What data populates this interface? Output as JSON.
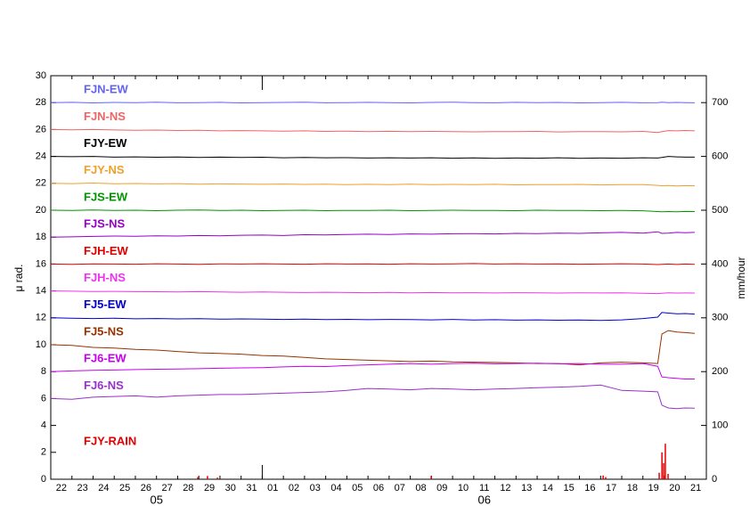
{
  "chart_data": {
    "type": "line",
    "y_label": "μ rad.",
    "y2_label": "mm/hour",
    "xlim": [
      0,
      31
    ],
    "ylim": [
      0,
      30
    ],
    "yticks": [
      0,
      2,
      4,
      6,
      8,
      10,
      12,
      14,
      16,
      18,
      20,
      22,
      24,
      26,
      28,
      30
    ],
    "y2lim": [
      0,
      750
    ],
    "y2ticks": [
      0,
      100,
      200,
      300,
      400,
      500,
      600,
      700
    ],
    "xminorticks": [
      0,
      1,
      2,
      3,
      4,
      5,
      6,
      7,
      8,
      9,
      10,
      11,
      12,
      13,
      14,
      15,
      16,
      17,
      18,
      19,
      20,
      21,
      22,
      23,
      24,
      25,
      26,
      27,
      28,
      29,
      30,
      31
    ],
    "month_ticks": [
      10
    ],
    "xticks": [
      {
        "value": 0.5,
        "label": "22"
      },
      {
        "value": 1.5,
        "label": "23"
      },
      {
        "value": 2.5,
        "label": "24"
      },
      {
        "value": 3.5,
        "label": "25"
      },
      {
        "value": 4.5,
        "label": "26"
      },
      {
        "value": 5.5,
        "label": "27"
      },
      {
        "value": 6.5,
        "label": "28"
      },
      {
        "value": 7.5,
        "label": "29"
      },
      {
        "value": 8.5,
        "label": "30"
      },
      {
        "value": 9.5,
        "label": "31"
      },
      {
        "value": 10.5,
        "label": "01"
      },
      {
        "value": 11.5,
        "label": "02"
      },
      {
        "value": 12.5,
        "label": "03"
      },
      {
        "value": 13.5,
        "label": "04"
      },
      {
        "value": 14.5,
        "label": "05"
      },
      {
        "value": 15.5,
        "label": "06"
      },
      {
        "value": 16.5,
        "label": "07"
      },
      {
        "value": 17.5,
        "label": "08"
      },
      {
        "value": 18.5,
        "label": "09"
      },
      {
        "value": 19.5,
        "label": "10"
      },
      {
        "value": 20.5,
        "label": "11"
      },
      {
        "value": 21.5,
        "label": "12"
      },
      {
        "value": 22.5,
        "label": "13"
      },
      {
        "value": 23.5,
        "label": "14"
      },
      {
        "value": 24.5,
        "label": "15"
      },
      {
        "value": 25.5,
        "label": "16"
      },
      {
        "value": 26.5,
        "label": "17"
      },
      {
        "value": 27.5,
        "label": "18"
      },
      {
        "value": 28.5,
        "label": "19"
      },
      {
        "value": 29.5,
        "label": "20"
      },
      {
        "value": 30.5,
        "label": "21"
      }
    ],
    "months": [
      {
        "value": 5,
        "label": "05"
      },
      {
        "value": 20.5,
        "label": "06"
      }
    ],
    "x": [
      0,
      1,
      2,
      3,
      4,
      5,
      6,
      7,
      8,
      9,
      10,
      11,
      12,
      13,
      14,
      15,
      16,
      17,
      18,
      19,
      20,
      21,
      22,
      23,
      24,
      25,
      26,
      27,
      28,
      28.7,
      28.9,
      29.2,
      29.6,
      30,
      30.45
    ],
    "series": [
      {
        "name": "FJN-EW",
        "color": "#6464f0",
        "values": [
          28.0,
          28.02,
          27.98,
          28.01,
          28.0,
          28.03,
          27.99,
          28.0,
          28.02,
          27.98,
          28.0,
          28.01,
          28.03,
          27.99,
          28.0,
          28.02,
          28.0,
          27.98,
          28.01,
          28.03,
          28.0,
          27.99,
          28.02,
          28.0,
          28.01,
          27.98,
          28.0,
          28.02,
          27.99,
          28.0,
          28.03,
          28.0,
          28.01,
          28.0,
          27.99
        ]
      },
      {
        "name": "FJN-NS",
        "color": "#f06464",
        "values": [
          26.0,
          25.98,
          26.0,
          25.97,
          25.95,
          25.96,
          25.93,
          25.95,
          25.9,
          25.92,
          25.9,
          25.88,
          25.9,
          25.86,
          25.88,
          25.85,
          25.87,
          25.84,
          25.86,
          25.85,
          25.83,
          25.85,
          25.84,
          25.86,
          25.82,
          25.85,
          25.84,
          25.83,
          25.86,
          25.78,
          25.85,
          25.92,
          25.9,
          25.93,
          25.9
        ]
      },
      {
        "name": "FJY-EW",
        "color": "#000000",
        "values": [
          24.0,
          23.98,
          24.0,
          23.95,
          23.97,
          23.94,
          23.96,
          23.93,
          23.95,
          23.92,
          23.94,
          23.9,
          23.92,
          23.9,
          23.91,
          23.88,
          23.9,
          23.88,
          23.9,
          23.87,
          23.89,
          23.86,
          23.88,
          23.87,
          23.9,
          23.86,
          23.88,
          23.87,
          23.9,
          23.88,
          23.92,
          24.0,
          23.97,
          23.95,
          23.95
        ]
      },
      {
        "name": "FJY-NS",
        "color": "#f0a028",
        "values": [
          22.0,
          21.98,
          22.02,
          21.97,
          21.99,
          21.96,
          21.98,
          21.94,
          21.96,
          21.95,
          21.93,
          21.95,
          21.92,
          21.94,
          21.9,
          21.93,
          21.91,
          21.94,
          21.9,
          21.92,
          21.9,
          21.93,
          21.89,
          21.91,
          21.9,
          21.92,
          21.88,
          21.9,
          21.91,
          21.85,
          21.82,
          21.84,
          21.8,
          21.83,
          21.82
        ]
      },
      {
        "name": "FJS-EW",
        "color": "#009600",
        "values": [
          20.0,
          19.98,
          20.01,
          19.99,
          20.0,
          19.97,
          20.0,
          20.02,
          19.98,
          20.0,
          19.97,
          19.99,
          20.0,
          19.97,
          19.99,
          19.98,
          20.0,
          19.97,
          19.99,
          20.0,
          19.98,
          19.99,
          19.97,
          20.0,
          19.98,
          19.99,
          19.97,
          19.98,
          19.96,
          19.9,
          19.88,
          19.9,
          19.89,
          19.91,
          19.9
        ]
      },
      {
        "name": "FJS-NS",
        "color": "#9600c8",
        "values": [
          18.0,
          18.02,
          18.05,
          18.08,
          18.06,
          18.1,
          18.08,
          18.12,
          18.1,
          18.14,
          18.15,
          18.12,
          18.18,
          18.16,
          18.2,
          18.22,
          18.2,
          18.24,
          18.22,
          18.25,
          18.26,
          18.24,
          18.28,
          18.26,
          18.3,
          18.28,
          18.32,
          18.35,
          18.3,
          18.4,
          18.28,
          18.3,
          18.35,
          18.33,
          18.35
        ]
      },
      {
        "name": "FJH-EW",
        "color": "#e00000",
        "values": [
          16.0,
          15.98,
          16.01,
          16.0,
          15.99,
          16.02,
          16.0,
          15.98,
          16.01,
          16.0,
          16.02,
          16.0,
          15.99,
          16.02,
          16.0,
          16.01,
          15.99,
          16.02,
          16.0,
          16.01,
          16.03,
          16.0,
          16.02,
          16.0,
          16.01,
          15.99,
          16.0,
          16.02,
          16.0,
          15.96,
          15.98,
          16.0,
          15.97,
          16.0,
          15.98
        ]
      },
      {
        "name": "FJH-NS",
        "color": "#f032f0",
        "values": [
          14.0,
          13.98,
          13.96,
          13.97,
          13.95,
          13.94,
          13.93,
          13.95,
          13.92,
          13.9,
          13.92,
          13.9,
          13.88,
          13.9,
          13.88,
          13.87,
          13.89,
          13.86,
          13.88,
          13.86,
          13.87,
          13.85,
          13.87,
          13.86,
          13.84,
          13.86,
          13.85,
          13.86,
          13.82,
          13.8,
          13.83,
          13.86,
          13.84,
          13.85,
          13.84
        ]
      },
      {
        "name": "FJ5-EW",
        "color": "#0000c8",
        "values": [
          12.0,
          11.97,
          11.95,
          11.97,
          11.93,
          11.95,
          11.92,
          11.94,
          11.9,
          11.92,
          11.9,
          11.88,
          11.9,
          11.87,
          11.89,
          11.86,
          11.88,
          11.87,
          11.85,
          11.88,
          11.84,
          11.86,
          11.83,
          11.85,
          11.82,
          11.84,
          11.8,
          11.85,
          11.95,
          12.05,
          12.4,
          12.35,
          12.3,
          12.32,
          12.28
        ]
      },
      {
        "name": "FJ5-NS",
        "color": "#963200",
        "values": [
          10.0,
          9.95,
          9.8,
          9.75,
          9.65,
          9.6,
          9.5,
          9.4,
          9.35,
          9.3,
          9.2,
          9.15,
          9.05,
          8.95,
          8.9,
          8.85,
          8.8,
          8.75,
          8.78,
          8.72,
          8.7,
          8.68,
          8.65,
          8.6,
          8.6,
          8.5,
          8.65,
          8.7,
          8.65,
          8.6,
          10.8,
          11.05,
          10.95,
          10.9,
          10.85
        ]
      },
      {
        "name": "FJ6-EW",
        "color": "#c800f0",
        "values": [
          8.0,
          8.05,
          8.1,
          8.12,
          8.15,
          8.18,
          8.2,
          8.22,
          8.25,
          8.28,
          8.3,
          8.35,
          8.4,
          8.38,
          8.45,
          8.5,
          8.55,
          8.6,
          8.55,
          8.6,
          8.62,
          8.58,
          8.6,
          8.62,
          8.58,
          8.6,
          8.55,
          8.55,
          8.6,
          8.4,
          7.6,
          7.55,
          7.5,
          7.45,
          7.45
        ]
      },
      {
        "name": "FJ6-NS",
        "color": "#9632c8",
        "values": [
          6.0,
          5.95,
          6.1,
          6.15,
          6.2,
          6.1,
          6.2,
          6.25,
          6.3,
          6.3,
          6.35,
          6.4,
          6.45,
          6.5,
          6.6,
          6.75,
          6.7,
          6.65,
          6.75,
          6.7,
          6.65,
          6.7,
          6.75,
          6.8,
          6.85,
          6.9,
          7.0,
          6.6,
          6.55,
          6.5,
          5.5,
          5.3,
          5.25,
          5.3,
          5.28
        ]
      },
      {
        "name": "FJY-RAIN",
        "color": "#e00000",
        "axis": "y2",
        "x": [
          6.95,
          7.41,
          7.88,
          17.99,
          26.12,
          26.24,
          28.77,
          28.9,
          28.98,
          29.06,
          29.19
        ],
        "values": [
          4,
          6,
          3,
          6,
          7,
          4,
          12,
          50,
          30,
          66,
          10
        ]
      }
    ]
  }
}
